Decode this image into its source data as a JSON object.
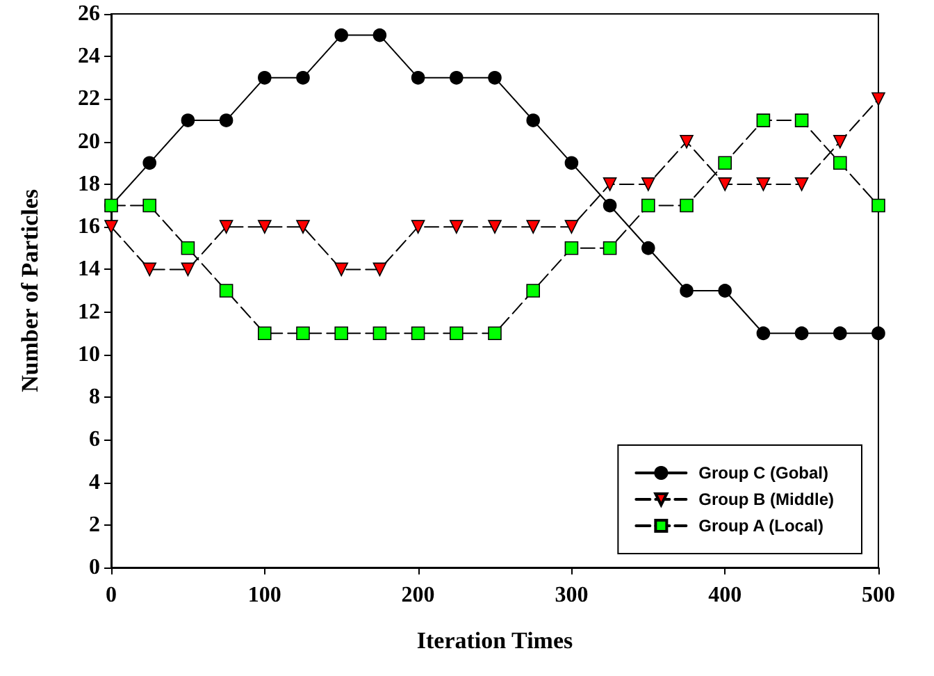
{
  "chart_data": {
    "type": "line",
    "xlabel": "Iteration Times",
    "ylabel": "Number of Particles",
    "x": [
      0,
      25,
      50,
      75,
      100,
      125,
      150,
      175,
      200,
      225,
      250,
      275,
      300,
      325,
      350,
      375,
      400,
      425,
      450,
      475,
      500
    ],
    "series": [
      {
        "name": "Group C (Gobal)",
        "color": "#000000",
        "marker": "circle",
        "line_style": "solid",
        "values": [
          17,
          19,
          21,
          21,
          23,
          23,
          25,
          25,
          23,
          23,
          23,
          21,
          19,
          17,
          15,
          13,
          13,
          11,
          11,
          11,
          11
        ]
      },
      {
        "name": "Group B (Middle)",
        "color": "#ff0000",
        "marker": "triangle",
        "line_style": "dashed",
        "values": [
          16,
          14,
          14,
          16,
          16,
          16,
          14,
          14,
          16,
          16,
          16,
          16,
          16,
          18,
          18,
          20,
          18,
          18,
          18,
          20,
          22
        ]
      },
      {
        "name": "Group A (Local)",
        "color": "#00ff00",
        "marker": "square",
        "line_style": "dashed",
        "values": [
          17,
          17,
          15,
          13,
          11,
          11,
          11,
          11,
          11,
          11,
          11,
          13,
          15,
          15,
          17,
          17,
          19,
          21,
          21,
          19,
          17
        ]
      }
    ],
    "xlim": [
      0,
      500
    ],
    "xticks": [
      0,
      100,
      200,
      300,
      400,
      500
    ],
    "ylim": [
      0,
      26
    ],
    "yticks": [
      0,
      2,
      4,
      6,
      8,
      10,
      12,
      14,
      16,
      18,
      20,
      22,
      24,
      26
    ],
    "grid": false,
    "legend": "bottom right"
  }
}
